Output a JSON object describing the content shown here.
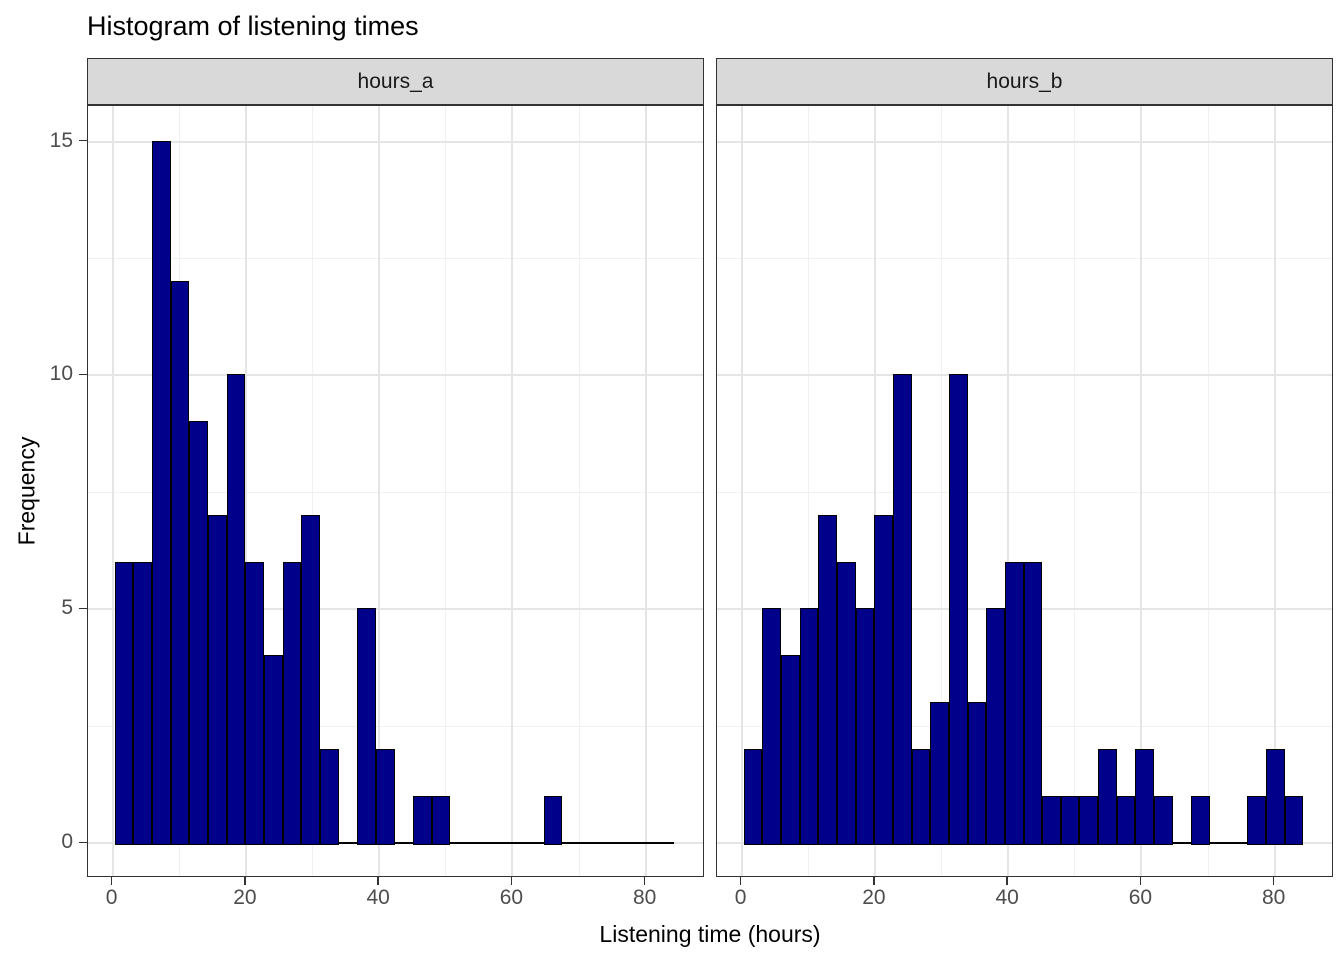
{
  "title": "Histogram of listening times",
  "chart_data": {
    "type": "bar",
    "subtype": "faceted-histogram",
    "title": "Histogram of listening times",
    "xlabel": "Listening time (hours)",
    "ylabel": "Frequency",
    "facets": [
      {
        "label": "hours_a",
        "counts": [
          6,
          6,
          15,
          12,
          9,
          7,
          10,
          6,
          4,
          6,
          7,
          2,
          0,
          5,
          2,
          0,
          1,
          1,
          0,
          0,
          0,
          0,
          0,
          1,
          0,
          0,
          0,
          0,
          0,
          0
        ]
      },
      {
        "label": "hours_b",
        "counts": [
          2,
          5,
          4,
          5,
          7,
          6,
          5,
          7,
          10,
          2,
          3,
          10,
          3,
          5,
          6,
          6,
          1,
          1,
          1,
          2,
          1,
          2,
          1,
          0,
          1,
          0,
          0,
          1,
          2,
          1
        ]
      }
    ],
    "bin_start": 0.3,
    "bin_width": 2.8,
    "n_bins": 30,
    "x_major_ticks": [
      0,
      20,
      40,
      60,
      80
    ],
    "x_minor_ticks": [
      10,
      30,
      50,
      70
    ],
    "y_major_ticks": [
      0,
      5,
      10,
      15
    ],
    "y_minor_ticks": [
      2.5,
      7.5,
      12.5
    ],
    "xlim": [
      -3.7,
      88.9
    ],
    "ylim": [
      -0.74,
      15.76
    ],
    "grid": true,
    "legend_position": "none",
    "colors": {
      "bar_fill": "#00008B",
      "bar_stroke": "#000000",
      "strip_fill": "#D9D9D9",
      "strip_text": "#1A1A1A",
      "panel_border": "#333333",
      "grid_major": "#E5E5E5",
      "grid_minor": "#F1F1F1",
      "tick_mark": "#333333",
      "tick_label": "#4D4D4D",
      "title_text": "#000000"
    }
  }
}
